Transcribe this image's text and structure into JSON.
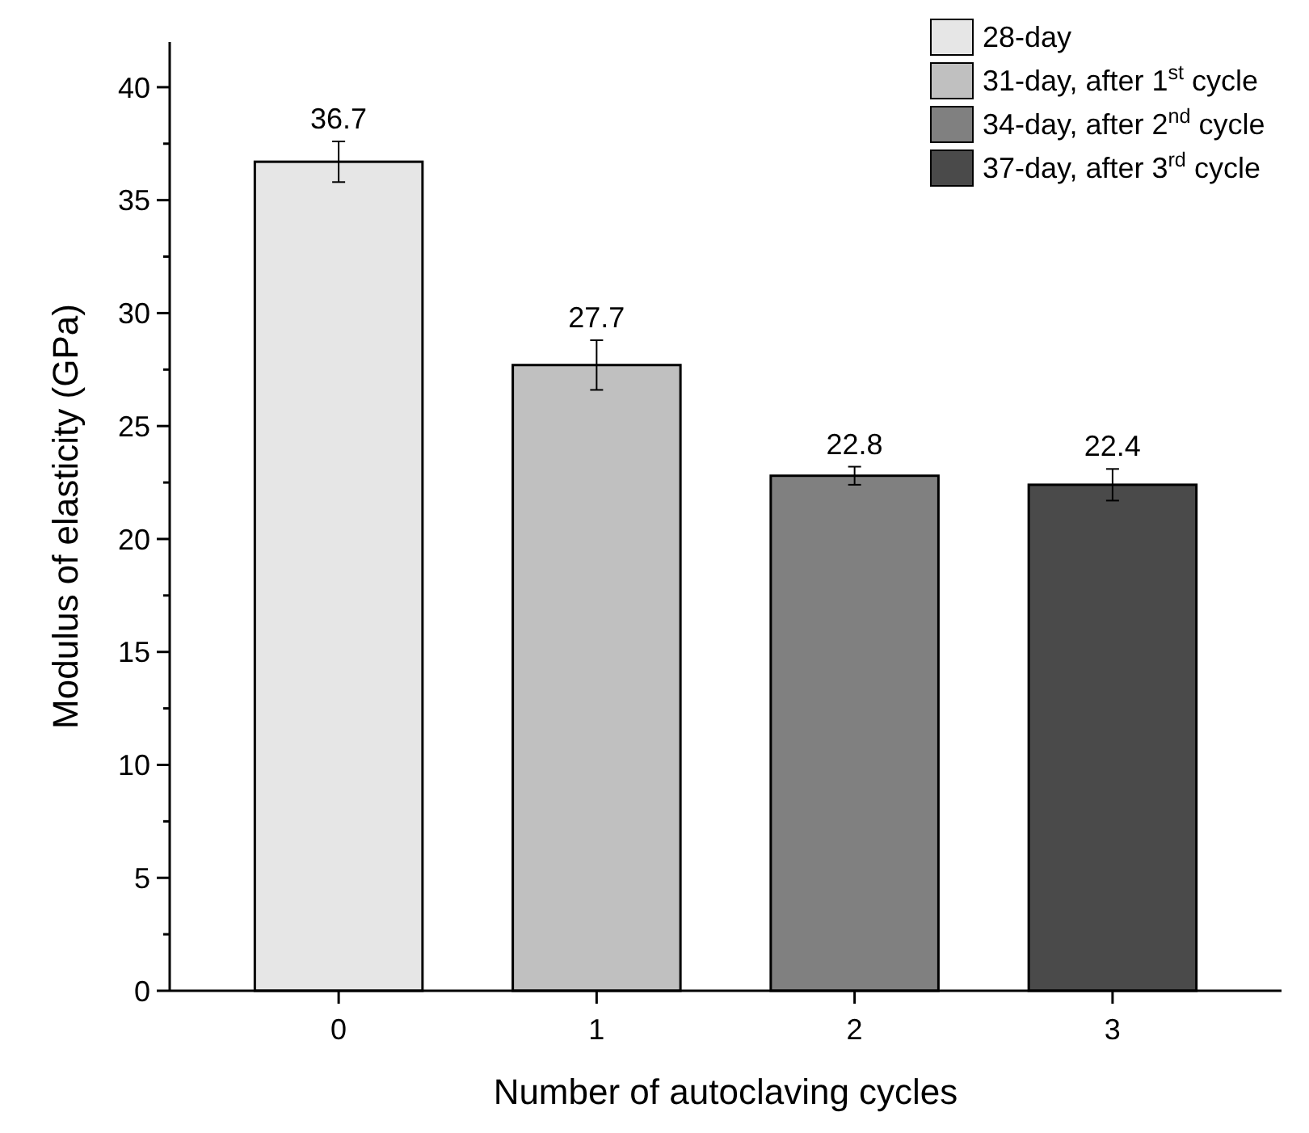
{
  "chart_data": {
    "type": "bar",
    "xlabel": "Number of autoclaving cycles",
    "ylabel": "Modulus of elasticity (GPa)",
    "categories": [
      "0",
      "1",
      "2",
      "3"
    ],
    "series": [
      {
        "name": "28-day",
        "color": "#e6e6e6",
        "values": [
          36.7,
          null,
          null,
          null
        ],
        "errors": [
          0.9,
          null,
          null,
          null
        ]
      },
      {
        "name": "31-day, after 1$^{st}$ cycle",
        "color": "#c0c0c0",
        "values": [
          null,
          27.7,
          null,
          null
        ],
        "errors": [
          null,
          1.1,
          null,
          null
        ]
      },
      {
        "name": "34-day, after 2$^{nd}$ cycle",
        "color": "#808080",
        "values": [
          null,
          null,
          22.8,
          null
        ],
        "errors": [
          null,
          null,
          0.4,
          null
        ]
      },
      {
        "name": "37-day, after 3$^{rd}$ cycle",
        "color": "#4a4a4a",
        "values": [
          null,
          null,
          null,
          22.4
        ],
        "errors": [
          null,
          null,
          null,
          0.7
        ]
      }
    ],
    "ylim": [
      0,
      42
    ],
    "yticks": [
      0,
      {
        "value": 2.5,
        "label": null
      },
      5,
      {
        "value": 7.5,
        "label": null
      },
      10,
      {
        "value": 12.5,
        "label": null
      },
      15,
      {
        "value": 17.5,
        "label": null
      },
      20,
      {
        "value": 22.5,
        "label": null
      },
      25,
      {
        "value": 27.5,
        "label": null
      },
      30,
      {
        "value": 32.5,
        "label": null
      },
      35,
      {
        "value": 37.5,
        "label": null
      },
      40
    ],
    "data_labels": true,
    "legend": "top right",
    "grid": false
  }
}
